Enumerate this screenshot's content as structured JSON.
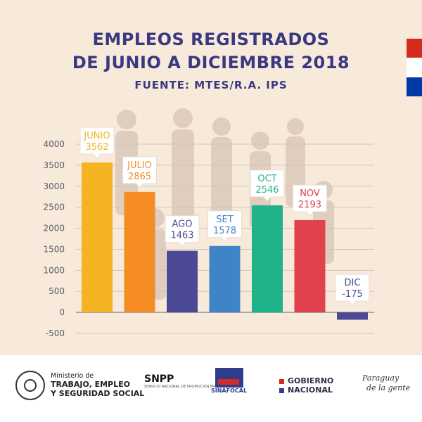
{
  "header": {
    "title_line1": "EMPLEOS REGISTRADOS",
    "title_line2": "DE JUNIO A DICIEMBRE 2018",
    "source": "FUENTE: MTES/R.A. IPS"
  },
  "chart_data": {
    "type": "bar",
    "title": "EMPLEOS REGISTRADOS DE JUNIO A DICIEMBRE 2018",
    "subtitle": "FUENTE: MTES/R.A. IPS",
    "categories": [
      "JUNIO",
      "JULIO",
      "AGO",
      "SET",
      "OCT",
      "NOV",
      "DIC"
    ],
    "values": [
      3562,
      2865,
      1463,
      1578,
      2546,
      2193,
      -175
    ],
    "colors": [
      "#f4b323",
      "#f58c24",
      "#4b4896",
      "#3e84c6",
      "#1fb38a",
      "#e0414a",
      "#4b4896"
    ],
    "label_colors": [
      "#f4b323",
      "#f58c24",
      "#4b4896",
      "#3e84c6",
      "#1fb38a",
      "#e0414a",
      "#4b4896"
    ],
    "yticks": [
      4000,
      3500,
      3000,
      2500,
      2000,
      1500,
      1000,
      500,
      0,
      -500
    ],
    "ylim": [
      -500,
      4000
    ],
    "xlabel": "",
    "ylabel": "",
    "grid": true,
    "legend": "none"
  },
  "footer": {
    "ministry_prefix": "Ministerio de",
    "ministry_line1": "TRABAJO, EMPLEO",
    "ministry_line2": "Y SEGURIDAD SOCIAL",
    "snpp": "SNPP",
    "snpp_sub": "SERVICIO NACIONAL DE PROMOCIÓN PROFESIONAL",
    "sinafocal": "SINAFOCAL",
    "gob_line1": "GOBIERNO",
    "gob_line2": "NACIONAL",
    "slogan_line1": "Paraguay",
    "slogan_line2": "de la gente"
  },
  "flag_colors": [
    "#d52b1e",
    "#ffffff",
    "#0038a8"
  ]
}
